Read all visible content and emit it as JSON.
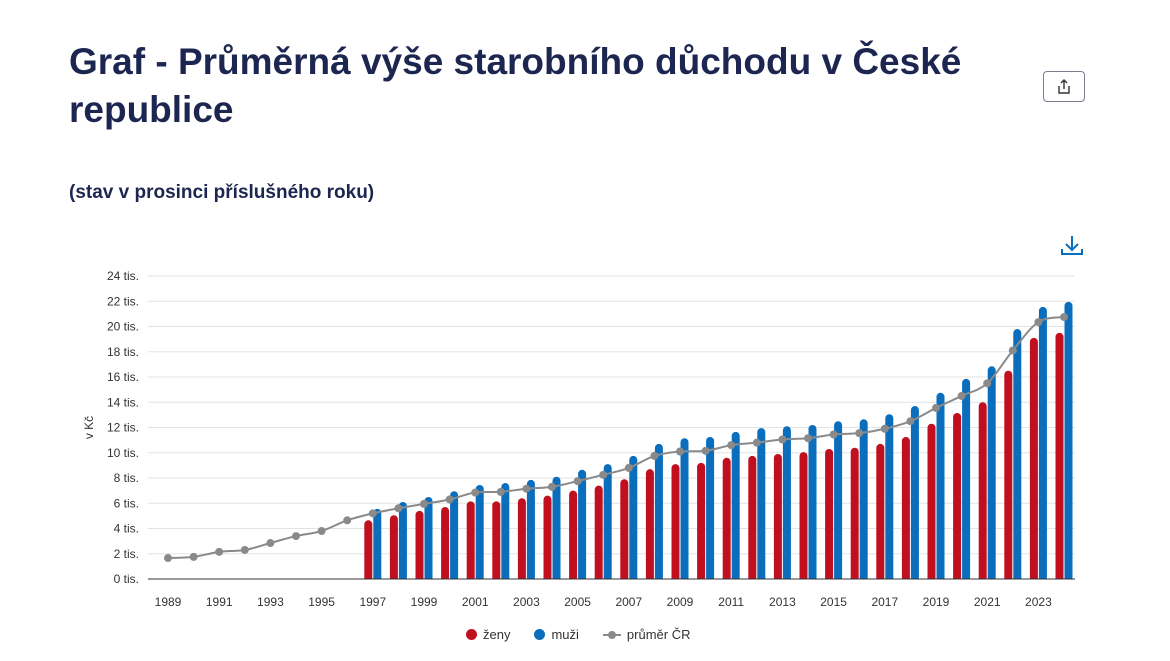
{
  "header": {
    "title": "Graf - Průměrná výše starobního důchodu v České republice",
    "subtitle": "(stav v prosinci příslušného roku)",
    "share_icon": "share-icon",
    "download_icon": "download-icon"
  },
  "chart_data": {
    "type": "bar",
    "title": "",
    "xlabel": "",
    "ylabel": "v Kč",
    "ylim": [
      0,
      24000
    ],
    "grid": true,
    "legend_position": "bottom",
    "y_ticks": [
      "0 tis.",
      "2 tis.",
      "4 tis.",
      "6 tis.",
      "8 tis.",
      "10 tis.",
      "12 tis.",
      "14 tis.",
      "16 tis.",
      "18 tis.",
      "20 tis.",
      "22 tis.",
      "24 tis."
    ],
    "x_tick_labels": [
      "1989",
      "1991",
      "1993",
      "1995",
      "1997",
      "1999",
      "2001",
      "2003",
      "2005",
      "2007",
      "2009",
      "2011",
      "2013",
      "2015",
      "2017",
      "2019",
      "2021",
      "2023"
    ],
    "categories": [
      1989,
      1990,
      1991,
      1992,
      1993,
      1994,
      1995,
      1996,
      1997,
      1998,
      1999,
      2000,
      2001,
      2002,
      2003,
      2004,
      2005,
      2006,
      2007,
      2008,
      2009,
      2010,
      2011,
      2012,
      2013,
      2014,
      2015,
      2016,
      2017,
      2018,
      2019,
      2020,
      2021,
      2022,
      2023,
      2024
    ],
    "series": [
      {
        "name": "ženy",
        "type": "bar",
        "color": "#c0101f",
        "values": [
          null,
          null,
          null,
          null,
          null,
          null,
          null,
          null,
          4650,
          5050,
          5400,
          5700,
          6150,
          6150,
          6400,
          6600,
          7000,
          7400,
          7900,
          8700,
          9100,
          9200,
          9600,
          9750,
          9900,
          10050,
          10300,
          10400,
          10700,
          11250,
          12300,
          13150,
          14000,
          16500,
          19100,
          19500
        ]
      },
      {
        "name": "muži",
        "type": "bar",
        "color": "#0a6ebd",
        "values": [
          null,
          null,
          null,
          null,
          null,
          null,
          null,
          null,
          5550,
          6100,
          6500,
          6950,
          7450,
          7600,
          7850,
          8100,
          8650,
          9100,
          9750,
          10700,
          11150,
          11250,
          11650,
          11950,
          12100,
          12200,
          12500,
          12650,
          13050,
          13700,
          14750,
          15850,
          16850,
          19800,
          21550,
          21950
        ]
      },
      {
        "name": "průměr ČR",
        "type": "line",
        "color": "#8a8a8a",
        "values": [
          1660,
          1750,
          2150,
          2300,
          2850,
          3400,
          3800,
          4650,
          5200,
          5600,
          5950,
          6300,
          6850,
          6900,
          7150,
          7300,
          7750,
          8250,
          8800,
          9750,
          10100,
          10150,
          10600,
          10800,
          11050,
          11150,
          11450,
          11550,
          11900,
          12500,
          13550,
          14500,
          15500,
          18100,
          20350,
          20750
        ]
      }
    ]
  }
}
